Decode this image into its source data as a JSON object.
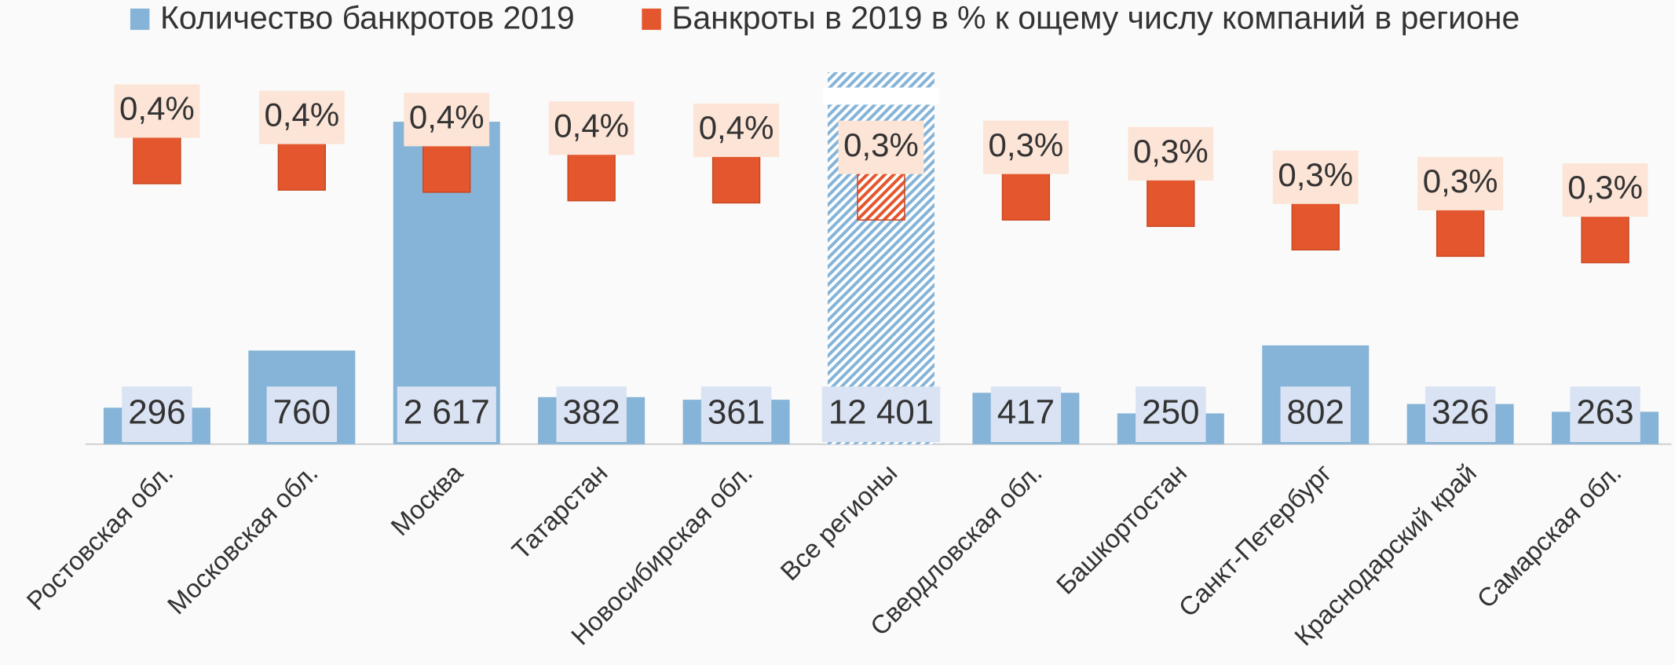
{
  "chart_data": {
    "type": "bar-marker",
    "categories": [
      "Ростовская обл.",
      "Московская обл.",
      "Москва",
      "Татарстан",
      "Новосибирская обл.",
      "Все регионы",
      "Свердловская обл.",
      "Башкортостан",
      "Санкт-Петербург",
      "Краснодарский край",
      "Самарская обл."
    ],
    "series": [
      {
        "name": "Количество банкротов 2019",
        "color": "#85b4d8",
        "values": [
          296,
          760,
          2617,
          382,
          361,
          12401,
          417,
          250,
          802,
          326,
          263
        ],
        "value_labels": [
          "296",
          "760",
          "2 617",
          "382",
          "361",
          "12 401",
          "417",
          "250",
          "802",
          "326",
          "263"
        ]
      },
      {
        "name": "Банкроты в 2019 в % к ощему числу компаний в регионе",
        "color": "#e4572e",
        "axis": "y2",
        "values": [
          0.363,
          0.36,
          0.359,
          0.355,
          0.354,
          0.346,
          0.346,
          0.343,
          0.332,
          0.329,
          0.326
        ],
        "value_labels": [
          "0,4%",
          "0,4%",
          "0,4%",
          "0,4%",
          "0,4%",
          "0,3%",
          "0,3%",
          "0,3%",
          "0,3%",
          "0,3%",
          "0,3%"
        ]
      }
    ],
    "ylim": [
      0,
      3085
    ],
    "y2lim": [
      0.23,
      0.408
    ],
    "hatched_category_index": 5,
    "legend": "top"
  }
}
